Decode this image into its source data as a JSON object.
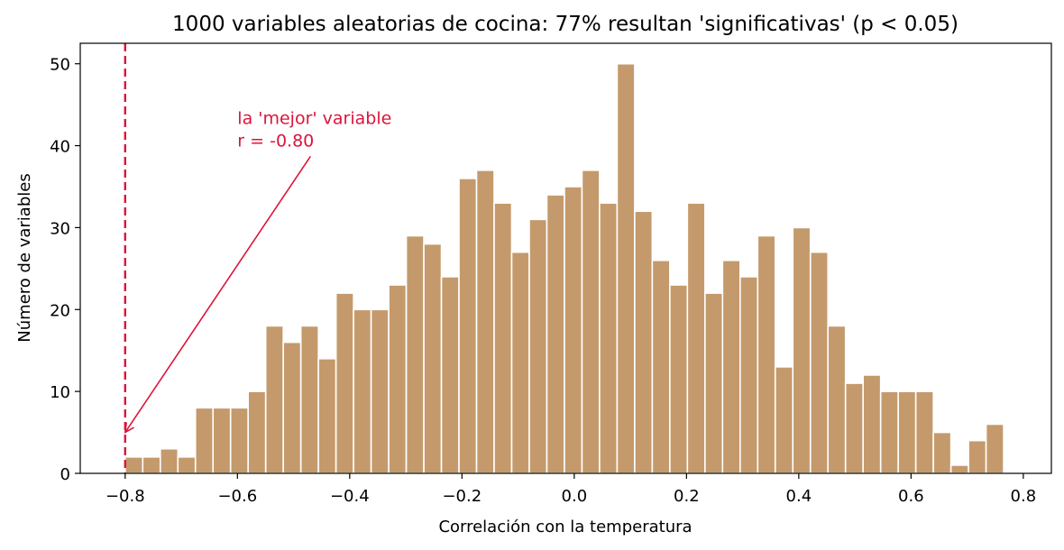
{
  "chart_data": {
    "type": "bar",
    "title": "1000 variables aleatorias de cocina: 77% resultan 'significativas' (p < 0.05)",
    "xlabel": "Correlación con la temperatura",
    "ylabel": "Número de variables",
    "xlim": [
      -0.88,
      0.85
    ],
    "ylim": [
      0,
      52.5
    ],
    "xticks": [
      -0.8,
      -0.6,
      -0.4,
      -0.2,
      0.0,
      0.2,
      0.4,
      0.6,
      0.8
    ],
    "xtick_labels": [
      "−0.8",
      "−0.6",
      "−0.4",
      "−0.2",
      "0.0",
      "0.2",
      "0.4",
      "0.6",
      "0.8"
    ],
    "yticks": [
      0,
      10,
      20,
      30,
      40,
      50
    ],
    "ytick_labels": [
      "0",
      "10",
      "20",
      "30",
      "40",
      "50"
    ],
    "bin_start": -0.8,
    "bin_width": 0.0313,
    "values": [
      2,
      2,
      3,
      2,
      8,
      8,
      8,
      10,
      18,
      16,
      18,
      14,
      22,
      20,
      20,
      23,
      29,
      28,
      24,
      36,
      37,
      33,
      27,
      31,
      34,
      35,
      37,
      33,
      50,
      32,
      26,
      23,
      33,
      22,
      26,
      24,
      29,
      13,
      30,
      27,
      18,
      11,
      12,
      10,
      10,
      10,
      5,
      1,
      4,
      6
    ],
    "bar_color": "#c49a6c",
    "reference_line": {
      "x": -0.8,
      "color": "#dc143c",
      "style": "dashed"
    },
    "annotation": {
      "line1": "la 'mejor' variable",
      "line2": "r = -0.80",
      "color": "#dc143c",
      "text_x": -0.6,
      "text_y": 42,
      "arrow_to_x": -0.8,
      "arrow_to_y": 5
    },
    "grid": false
  }
}
